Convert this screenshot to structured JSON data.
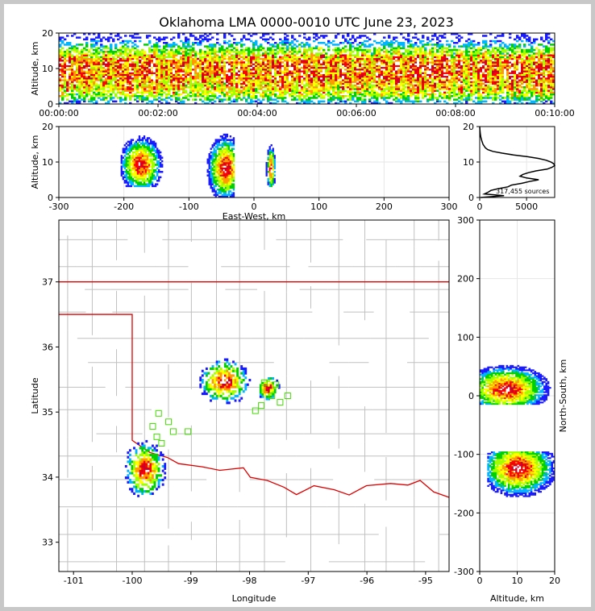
{
  "title": "Oklahoma LMA 0000-0010 UTC June 23, 2023",
  "chart_data": [
    {
      "panel": "altitude-vs-time",
      "type": "heatmap",
      "ylabel": "Altitude, km",
      "xlim": [
        "00:00:00",
        "00:10:00"
      ],
      "ylim": [
        0,
        20
      ],
      "xticks": [
        "00:00:00",
        "00:02:00",
        "00:04:00",
        "00:06:00",
        "00:08:00",
        "00:10:00"
      ],
      "yticks": [
        0,
        10,
        20
      ],
      "density_by_altitude_km": [
        [
          0,
          2
        ],
        [
          1,
          4
        ],
        [
          2,
          6
        ],
        [
          3,
          7
        ],
        [
          4,
          8
        ],
        [
          5,
          8
        ],
        [
          6,
          9
        ],
        [
          7,
          10
        ],
        [
          8,
          10
        ],
        [
          9,
          10
        ],
        [
          10,
          10
        ],
        [
          11,
          10
        ],
        [
          12,
          9
        ],
        [
          13,
          8
        ],
        [
          14,
          6
        ],
        [
          15,
          5
        ],
        [
          16,
          3
        ],
        [
          17,
          2
        ],
        [
          18,
          1
        ],
        [
          19,
          0
        ],
        [
          20,
          0
        ]
      ],
      "grid": false
    },
    {
      "panel": "altitude-vs-east-west",
      "type": "heatmap",
      "xlabel": "East-West, km",
      "ylabel": "Altitude, km",
      "xlim": [
        -300,
        300
      ],
      "ylim": [
        0,
        20
      ],
      "xticks": [
        -300,
        -200,
        -100,
        0,
        100,
        200,
        300
      ],
      "yticks": [
        0,
        10,
        20
      ],
      "clusters": [
        {
          "x_range_km": [
            -205,
            -140
          ],
          "z_range_km": [
            3,
            20
          ],
          "peak_x_km": -175,
          "peak_z_km": 9
        },
        {
          "x_range_km": [
            -85,
            -30
          ],
          "z_range_km": [
            0,
            20
          ],
          "peak_x_km": -45,
          "peak_z_km": 8
        },
        {
          "x_range_km": [
            18,
            32
          ],
          "z_range_km": [
            3,
            17
          ],
          "peak_x_km": 25,
          "peak_z_km": 8
        }
      ],
      "grid": true
    },
    {
      "panel": "altitude-histogram",
      "type": "line",
      "xlim": [
        0,
        8000
      ],
      "ylim": [
        0,
        20
      ],
      "xticks": [
        0,
        5000
      ],
      "yticks": [
        0,
        10,
        20
      ],
      "annotation": "317,455 sources",
      "altitude_km": [
        0,
        0.5,
        1,
        1.5,
        2,
        2.5,
        3,
        3.5,
        4,
        4.5,
        5,
        5.5,
        6,
        6.5,
        7,
        7.5,
        8,
        8.5,
        9,
        9.5,
        10,
        10.5,
        11,
        11.5,
        12,
        12.5,
        13,
        13.5,
        14,
        15,
        16,
        17,
        18,
        19,
        20
      ],
      "counts": [
        100,
        2600,
        500,
        900,
        1200,
        2000,
        3000,
        3400,
        4500,
        5300,
        6300,
        5000,
        4300,
        4600,
        5200,
        6000,
        7200,
        7700,
        8000,
        7900,
        7600,
        7100,
        6300,
        5100,
        3600,
        2400,
        1400,
        850,
        600,
        350,
        220,
        120,
        60,
        25,
        0
      ],
      "grid": true
    },
    {
      "panel": "plan-view-map",
      "type": "scatter",
      "xlabel": "Longitude",
      "ylabel": "Latitude",
      "xlim": [
        -101.25,
        -94.6
      ],
      "ylim": [
        32.55,
        37.95
      ],
      "xticks": [
        -101,
        -100,
        -99,
        -98,
        -97,
        -96,
        -95
      ],
      "yticks": [
        33,
        34,
        35,
        36,
        37
      ],
      "storms": [
        {
          "lon": -98.45,
          "lat": 35.45,
          "spread_lon": 0.22,
          "spread_lat": 0.18
        },
        {
          "lon": -99.8,
          "lat": 34.1,
          "spread_lon": 0.18,
          "spread_lat": 0.22
        },
        {
          "lon": -97.7,
          "lat": 35.35,
          "spread_lon": 0.1,
          "spread_lat": 0.1
        }
      ],
      "stations": [
        [
          -99.55,
          34.98
        ],
        [
          -99.38,
          34.85
        ],
        [
          -99.65,
          34.78
        ],
        [
          -99.3,
          34.7
        ],
        [
          -99.58,
          34.62
        ],
        [
          -99.5,
          34.52
        ],
        [
          -99.05,
          34.7
        ],
        [
          -97.75,
          35.45
        ],
        [
          -97.55,
          35.42
        ],
        [
          -97.62,
          35.25
        ],
        [
          -97.8,
          35.1
        ],
        [
          -97.9,
          35.02
        ],
        [
          -97.48,
          35.15
        ],
        [
          -97.35,
          35.25
        ]
      ],
      "colors": {
        "state_border": "#dd0000",
        "county_lines": "#c0c0c0",
        "stations": "#44dd00"
      }
    },
    {
      "panel": "north-south-vs-altitude",
      "type": "heatmap",
      "xlabel": "Altitude, km",
      "ylabel": "North-South, km",
      "xlim": [
        0,
        20
      ],
      "ylim": [
        -300,
        300
      ],
      "xticks": [
        0,
        10,
        20
      ],
      "yticks": [
        -300,
        -200,
        -100,
        0,
        100,
        200,
        300
      ],
      "clusters": [
        {
          "y_range_km": [
            -15,
            65
          ],
          "z_range_km": [
            0,
            20
          ],
          "peak_y_km": 10,
          "peak_z_km": 7
        },
        {
          "y_range_km": [
            -190,
            -95
          ],
          "z_range_km": [
            2,
            20
          ],
          "peak_y_km": -125,
          "peak_z_km": 10
        }
      ],
      "grid": true
    }
  ]
}
